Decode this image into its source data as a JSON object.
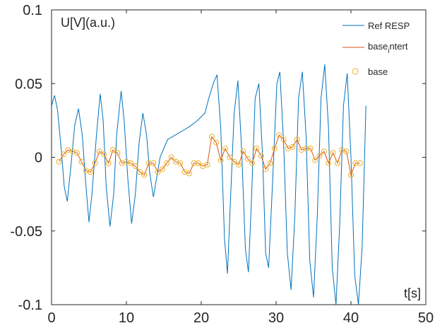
{
  "chart_data": {
    "type": "line",
    "title": "",
    "xlabel": "t[s]",
    "ylabel": "U[V](a.u.)",
    "xlim": [
      0,
      50
    ],
    "ylim": [
      -0.1,
      0.1
    ],
    "xticks": [
      0,
      10,
      20,
      30,
      40,
      50
    ],
    "xtick_labels": [
      "0",
      "10",
      "20",
      "30",
      "40",
      "50"
    ],
    "yticks": [
      -0.1,
      -0.05,
      0,
      0.05,
      0.1
    ],
    "ytick_labels": [
      "-0.1",
      "-0.05",
      "0",
      "0.05",
      "0.1"
    ],
    "grid": false,
    "legend_position": "top-right",
    "series": [
      {
        "name": "Ref RESP",
        "color": "#0072BD",
        "style": "line",
        "x": [
          0,
          0.4,
          0.8,
          1.3,
          1.7,
          2.1,
          2.6,
          3.1,
          3.6,
          4.1,
          4.6,
          5.0,
          5.4,
          6.0,
          6.5,
          6.9,
          7.3,
          7.8,
          8.3,
          8.7,
          9.3,
          9.7,
          10.2,
          10.7,
          11.2,
          11.7,
          12.2,
          12.7,
          13.1,
          13.6,
          14.5,
          15.5,
          16.5,
          17.5,
          18.5,
          19.5,
          20.5,
          21.0,
          21.6,
          22.1,
          22.6,
          23.1,
          23.5,
          23.9,
          24.4,
          24.9,
          25.4,
          25.9,
          26.3,
          26.7,
          27.2,
          27.7,
          28.2,
          28.6,
          29.0,
          29.5,
          30.1,
          30.5,
          31.0,
          31.5,
          32.0,
          32.5,
          33.0,
          33.5,
          34.0,
          34.5,
          35.0,
          35.5,
          36.0,
          36.5,
          37.0,
          37.5,
          38.0,
          38.5,
          39.0,
          39.5,
          40.0,
          40.5,
          41.0,
          41.5,
          42.0
        ],
        "y": [
          0.035,
          0.042,
          0.032,
          0.005,
          -0.02,
          -0.03,
          -0.005,
          0.022,
          0.033,
          0.015,
          -0.02,
          -0.044,
          -0.025,
          0.015,
          0.043,
          0.025,
          -0.02,
          -0.047,
          -0.025,
          0.015,
          0.045,
          0.025,
          -0.015,
          -0.045,
          -0.025,
          0.01,
          0.03,
          0.015,
          -0.01,
          -0.027,
          0.0,
          0.012,
          0.015,
          0.018,
          0.021,
          0.025,
          0.03,
          0.04,
          0.05,
          0.056,
          0.02,
          -0.055,
          -0.079,
          -0.03,
          0.03,
          0.052,
          0.005,
          -0.062,
          -0.078,
          -0.03,
          0.04,
          0.05,
          0.0,
          -0.065,
          -0.075,
          -0.02,
          0.05,
          0.058,
          0.01,
          -0.065,
          -0.09,
          -0.04,
          0.04,
          0.058,
          0.015,
          -0.07,
          -0.095,
          -0.04,
          0.04,
          0.063,
          0.02,
          -0.075,
          -0.1,
          -0.045,
          0.035,
          0.057,
          0.0,
          -0.08,
          -0.1,
          -0.06,
          0.035
        ]
      },
      {
        "name": "base_intert",
        "color": "#D95319",
        "style": "line",
        "x": [
          1.0,
          1.6,
          2.2,
          2.8,
          3.4,
          4.0,
          4.6,
          5.2,
          5.8,
          6.4,
          7.0,
          7.6,
          8.2,
          8.8,
          9.4,
          10.0,
          10.6,
          11.2,
          11.8,
          12.4,
          13.0,
          13.6,
          14.2,
          14.8,
          15.4,
          16.0,
          16.6,
          17.2,
          17.8,
          18.4,
          19.0,
          19.6,
          20.2,
          20.8,
          21.4,
          22.0,
          22.6,
          23.2,
          23.8,
          24.4,
          25.0,
          25.6,
          26.2,
          26.8,
          27.4,
          28.0,
          28.6,
          29.2,
          29.8,
          30.4,
          31.0,
          31.6,
          32.2,
          32.8,
          33.4,
          34.0,
          34.6,
          35.2,
          35.8,
          36.4,
          37.0,
          37.6,
          38.2,
          38.8,
          39.4,
          40.0,
          40.6,
          41.2
        ],
        "y": [
          -0.003,
          0.002,
          0.005,
          0.004,
          0.003,
          -0.003,
          -0.009,
          -0.01,
          -0.004,
          0.004,
          0.002,
          -0.004,
          0.005,
          0.003,
          -0.004,
          -0.003,
          -0.004,
          -0.006,
          -0.01,
          -0.012,
          -0.004,
          -0.004,
          -0.01,
          -0.008,
          -0.004,
          0.0,
          -0.003,
          -0.004,
          -0.01,
          -0.011,
          -0.004,
          -0.004,
          -0.006,
          -0.005,
          0.014,
          0.01,
          -0.002,
          0.006,
          0.0,
          -0.003,
          -0.005,
          0.004,
          -0.001,
          -0.004,
          0.006,
          0.001,
          -0.008,
          -0.004,
          0.006,
          0.015,
          0.012,
          0.006,
          0.007,
          0.012,
          0.005,
          0.006,
          0.006,
          -0.002,
          0.001,
          0.004,
          -0.004,
          0.003,
          -0.004,
          0.005,
          0.004,
          -0.012,
          -0.004,
          -0.004
        ]
      },
      {
        "name": "base",
        "color": "#EDB120",
        "style": "markers",
        "x": [
          1.0,
          1.6,
          2.2,
          2.8,
          3.4,
          4.0,
          4.6,
          5.2,
          5.8,
          6.4,
          7.0,
          7.6,
          8.2,
          8.8,
          9.4,
          10.0,
          10.6,
          11.2,
          11.8,
          12.4,
          13.0,
          13.6,
          14.2,
          14.8,
          15.4,
          16.0,
          16.6,
          17.2,
          17.8,
          18.4,
          19.0,
          19.6,
          20.2,
          20.8,
          21.4,
          22.0,
          22.6,
          23.2,
          23.8,
          24.4,
          25.0,
          25.6,
          26.2,
          26.8,
          27.4,
          28.0,
          28.6,
          29.2,
          29.8,
          30.4,
          31.0,
          31.6,
          32.2,
          32.8,
          33.4,
          34.0,
          34.6,
          35.2,
          35.8,
          36.4,
          37.0,
          37.6,
          38.2,
          38.8,
          39.4,
          40.0,
          40.6,
          41.2
        ],
        "y": [
          -0.003,
          0.002,
          0.005,
          0.004,
          0.003,
          -0.003,
          -0.009,
          -0.01,
          -0.004,
          0.004,
          0.002,
          -0.004,
          0.005,
          0.003,
          -0.004,
          -0.003,
          -0.004,
          -0.006,
          -0.01,
          -0.012,
          -0.004,
          -0.004,
          -0.01,
          -0.008,
          -0.004,
          0.0,
          -0.003,
          -0.004,
          -0.01,
          -0.011,
          -0.004,
          -0.004,
          -0.006,
          -0.005,
          0.014,
          0.01,
          -0.002,
          0.006,
          0.0,
          -0.003,
          -0.005,
          0.004,
          -0.001,
          -0.004,
          0.006,
          0.001,
          -0.008,
          -0.004,
          0.006,
          0.015,
          0.012,
          0.006,
          0.007,
          0.012,
          0.005,
          0.006,
          0.006,
          -0.002,
          0.001,
          0.004,
          -0.004,
          0.003,
          -0.004,
          0.005,
          0.004,
          -0.012,
          -0.004,
          -0.004
        ]
      }
    ],
    "legend": {
      "entries": [
        "Ref RESP",
        "base_intert",
        "base"
      ],
      "label_main": "base",
      "label_sub": "i",
      "label_rest": "ntert"
    }
  }
}
